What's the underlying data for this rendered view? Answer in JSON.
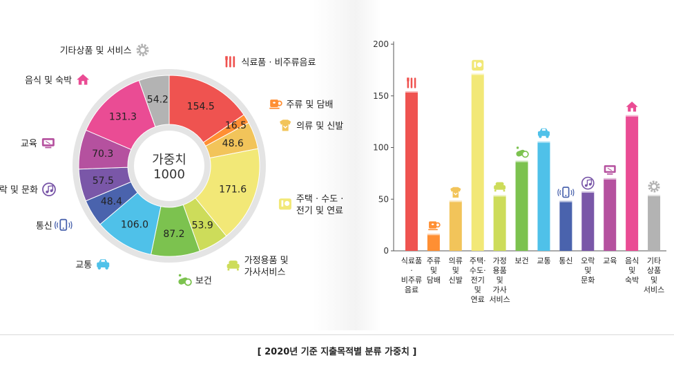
{
  "caption": "[ 2020년 기준 지출목적별 분류 가중치 ]",
  "donut": {
    "center_line1": "가중치",
    "center_line2": "1000"
  },
  "chart_data": [
    {
      "type": "pie",
      "title": "",
      "center_label": "가중치 1000",
      "categories": [
        "식료품 · 비주류음료",
        "주류 및 담배",
        "의류 및 신발",
        "주택 · 수도 · 전기 및 연료",
        "가정용품 및 가사서비스",
        "보건",
        "교통",
        "통신",
        "오락 및 문화",
        "교육",
        "음식 및 숙박",
        "기타상품 및 서비스"
      ],
      "values": [
        154.5,
        16.5,
        48.6,
        171.6,
        53.9,
        87.2,
        106.0,
        48.4,
        57.5,
        70.3,
        131.3,
        54.2
      ],
      "value_labels": [
        "154.5",
        "16.5",
        "48.6",
        "171.6",
        "53.9",
        "87.2",
        "106.0",
        "48.4",
        "57.5",
        "70.3",
        "131.3",
        "54.2"
      ],
      "colors": [
        "#ef5350",
        "#ff8f33",
        "#f2c45a",
        "#f2e877",
        "#cddc5a",
        "#7cc24f",
        "#4fc1e9",
        "#4a63ad",
        "#7a57a8",
        "#b5519f",
        "#ea4c94",
        "#b3b3b3"
      ],
      "icons": [
        "utensils-icon",
        "cup-icon",
        "shirt-icon",
        "house-utility-icon",
        "sofa-icon",
        "pill-icon",
        "car-icon",
        "phone-icon",
        "music-icon",
        "monitor-icon",
        "home-icon",
        "gear-icon"
      ]
    },
    {
      "type": "bar",
      "title": "",
      "categories": [
        "식료품 · 비주류 음료",
        "주류 및 담배",
        "의류 및 신발",
        "주택 · 수도 · 전기 및 연료",
        "가정 용품 및 가사 서비스",
        "보건",
        "교통",
        "통신",
        "오락 및 문화",
        "교육",
        "음식 및 숙박",
        "기타 상품 및 서비스"
      ],
      "category_lines": [
        [
          "식료품",
          "·",
          "비주류",
          "음료"
        ],
        [
          "주류",
          "및",
          "담배"
        ],
        [
          "의류",
          "및",
          "신발"
        ],
        [
          "주택·",
          "수도·",
          "전기",
          "및",
          "연료"
        ],
        [
          "가정",
          "용품",
          "및",
          "가사",
          "서비스"
        ],
        [
          "보건"
        ],
        [
          "교통"
        ],
        [
          "통신"
        ],
        [
          "오락",
          "및",
          "문화"
        ],
        [
          "교육"
        ],
        [
          "음식",
          "및",
          "숙박"
        ],
        [
          "기타",
          "상품",
          "및",
          "서비스"
        ]
      ],
      "values": [
        154.5,
        16.5,
        48.6,
        171.6,
        53.9,
        87.2,
        106.0,
        48.4,
        57.5,
        70.3,
        131.3,
        54.2
      ],
      "ylim": [
        0,
        200
      ],
      "yticks": [
        "0",
        "50",
        "100",
        "150",
        "200"
      ],
      "grid": false,
      "colors": [
        "#ef5350",
        "#ff8f33",
        "#f2c45a",
        "#f2e877",
        "#cddc5a",
        "#7cc24f",
        "#4fc1e9",
        "#4a63ad",
        "#7a57a8",
        "#b5519f",
        "#ea4c94",
        "#b3b3b3"
      ]
    }
  ]
}
